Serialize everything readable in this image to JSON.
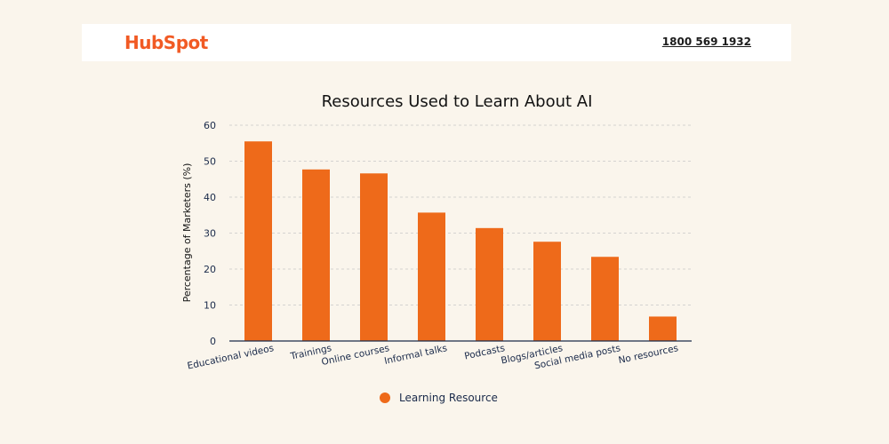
{
  "header": {
    "logo_text": "HubSpot",
    "phone": "1800 569 1932"
  },
  "colors": {
    "bar": "#ee6a1a",
    "background": "#faf5ec",
    "grid": "#c8c8c8",
    "axis": "#1a2a4a"
  },
  "chart_data": {
    "type": "bar",
    "title": "Resources Used to Learn About AI",
    "xlabel": "",
    "ylabel": "Percentage of Marketers (%)",
    "ylim": [
      0,
      60
    ],
    "yticks": [
      0,
      10,
      20,
      30,
      40,
      50,
      60
    ],
    "grid": true,
    "legend_position": "bottom-center",
    "categories": [
      "Educational videos",
      "Trainings",
      "Online courses",
      "Informal talks",
      "Podcasts",
      "Blogs/articles",
      "Social media posts",
      "No resources"
    ],
    "series": [
      {
        "name": "Learning Resource",
        "values": [
          55.5,
          47.7,
          46.6,
          35.7,
          31.4,
          27.6,
          23.4,
          6.8
        ]
      }
    ]
  }
}
